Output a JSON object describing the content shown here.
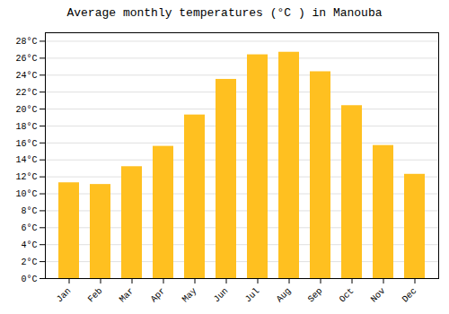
{
  "chart_data": {
    "type": "bar",
    "title": "Average monthly temperatures (°C ) in Manouba",
    "categories": [
      "Jan",
      "Feb",
      "Mar",
      "Apr",
      "May",
      "Jun",
      "Jul",
      "Aug",
      "Sep",
      "Oct",
      "Nov",
      "Dec"
    ],
    "values": [
      11.3,
      11.1,
      13.2,
      15.6,
      19.3,
      23.5,
      26.4,
      26.7,
      24.4,
      20.4,
      15.7,
      12.3
    ],
    "color": "#FFC020",
    "ylim": [
      0,
      29
    ],
    "yticks": [
      {
        "value": 0,
        "label": "0°C"
      },
      {
        "value": 2,
        "label": "2°C"
      },
      {
        "value": 4,
        "label": "4°C"
      },
      {
        "value": 6,
        "label": "6°C"
      },
      {
        "value": 8,
        "label": "8°C"
      },
      {
        "value": 10,
        "label": "10°C"
      },
      {
        "value": 12,
        "label": "12°C"
      },
      {
        "value": 14,
        "label": "14°C"
      },
      {
        "value": 16,
        "label": "16°C"
      },
      {
        "value": 18,
        "label": "18°C"
      },
      {
        "value": 20,
        "label": "20°C"
      },
      {
        "value": 22,
        "label": "22°C"
      },
      {
        "value": 24,
        "label": "24°C"
      },
      {
        "value": 26,
        "label": "26°C"
      },
      {
        "value": 28,
        "label": "28°C"
      }
    ],
    "grid": true
  }
}
